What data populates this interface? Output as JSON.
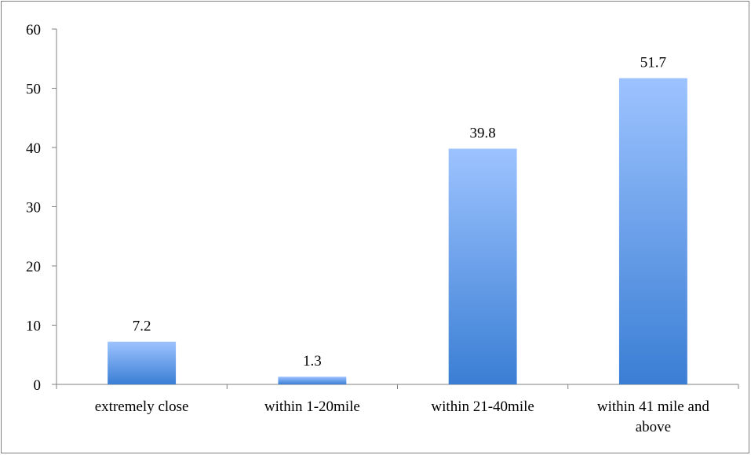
{
  "chart_data": {
    "type": "bar",
    "title": "",
    "xlabel": "",
    "ylabel": "",
    "categories": [
      [
        "extremely close"
      ],
      [
        "within 1-20mile"
      ],
      [
        "within 21-40mile"
      ],
      [
        "within 41 mile and",
        "above"
      ]
    ],
    "values": [
      7.2,
      1.3,
      39.8,
      51.7
    ],
    "data_labels": [
      "7.2",
      "1.3",
      "39.8",
      "51.7"
    ],
    "ylim": [
      0,
      60
    ],
    "yticks": [
      0,
      10,
      20,
      30,
      40,
      50,
      60
    ],
    "grid": false,
    "legend": "none",
    "colors": {
      "bar_top": "#9dc3ff",
      "bar_bottom": "#3a7ed4",
      "axis": "#808080",
      "border": "#7f7f7f"
    }
  }
}
